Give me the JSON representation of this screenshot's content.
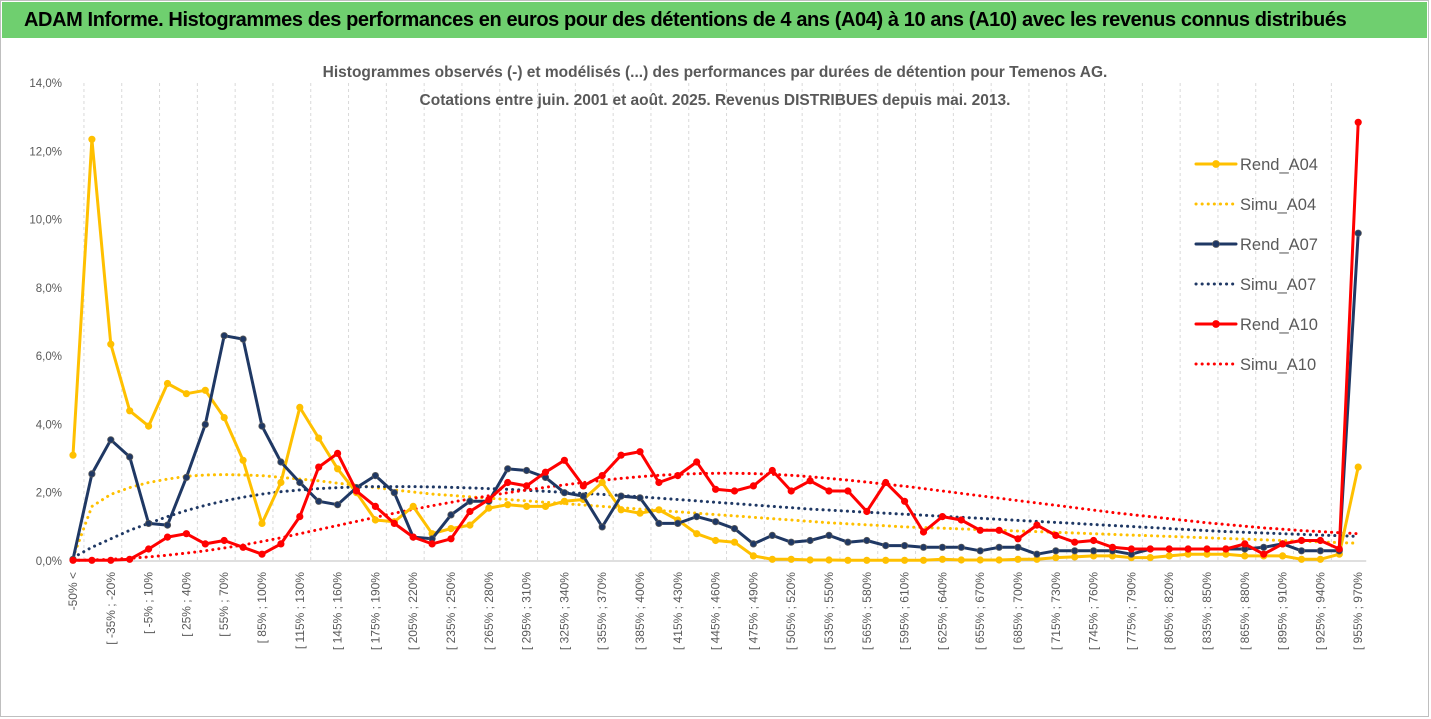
{
  "header": {
    "title": "ADAM Informe. Histogrammes des performances en euros pour des détentions de 4 ans (A04) à 10 ans (A10) avec les revenus connus distribués"
  },
  "colors": {
    "header_bg": "#6fcf6f",
    "A04": "#ffc000",
    "A07": "#1f3864",
    "A10": "#ff0000",
    "grid": "#d9d9d9",
    "axis": "#595959"
  },
  "chart_data": {
    "type": "line",
    "title": "Histogrammes observés (-) et modélisés (...) des performances par durées de détention pour Temenos AG.",
    "subtitle": "Cotations entre juin. 2001 et août. 2025. Revenus DISTRIBUES depuis mai. 2013.",
    "ylim": [
      0,
      14
    ],
    "yticks": [
      "0,0%",
      "2,0%",
      "4,0%",
      "6,0%",
      "8,0%",
      "10,0%",
      "12,0%",
      "14,0%"
    ],
    "tick_labels": [
      "-50% <",
      "[ -35% ; -20%",
      "[ -5% ; 10%",
      "[ 25% ; 40%",
      "[ 55% ; 70%",
      "[ 85% ; 100%",
      "[ 115% ; 130%",
      "[ 145% ; 160%",
      "[ 175% ; 190%",
      "[ 205% ; 220%",
      "[ 235% ; 250%",
      "[ 265% ; 280%",
      "[ 295% ; 310%",
      "[ 325% ; 340%",
      "[ 355% ; 370%",
      "[ 385% ; 400%",
      "[ 415% ; 430%",
      "[ 445% ; 460%",
      "[ 475% ; 490%",
      "[ 505% ; 520%",
      "[ 535% ; 550%",
      "[ 565% ; 580%",
      "[ 595% ; 610%",
      "[ 625% ; 640%",
      "[ 655% ; 670%",
      "[ 685% ; 700%",
      "[ 715% ; 730%",
      "[ 745% ; 760%",
      "[ 775% ; 790%",
      "[ 805% ; 820%",
      "[ 835% ; 850%",
      "[ 865% ; 880%",
      "[ 895% ; 910%",
      "[ 925% ; 940%",
      "[ 955% ; 970%"
    ],
    "n_points": 69,
    "legend_position": "right",
    "series": [
      {
        "name": "Rend_A04",
        "color": "#ffc000",
        "style": "solid",
        "markers": true,
        "values": [
          3.1,
          12.35,
          6.35,
          4.4,
          3.95,
          5.2,
          4.9,
          5.0,
          4.2,
          2.95,
          1.1,
          2.3,
          4.5,
          3.6,
          2.7,
          2.0,
          1.2,
          1.15,
          1.6,
          0.8,
          0.95,
          1.05,
          1.55,
          1.65,
          1.6,
          1.6,
          1.75,
          1.8,
          2.3,
          1.5,
          1.4,
          1.5,
          1.2,
          0.8,
          0.6,
          0.55,
          0.15,
          0.05,
          0.05,
          0.03,
          0.03,
          0.02,
          0.02,
          0.02,
          0.02,
          0.02,
          0.05,
          0.03,
          0.03,
          0.03,
          0.05,
          0.05,
          0.1,
          0.12,
          0.15,
          0.15,
          0.1,
          0.1,
          0.15,
          0.2,
          0.2,
          0.2,
          0.15,
          0.15,
          0.15,
          0.05,
          0.05,
          0.2,
          2.75
        ]
      },
      {
        "name": "Simu_A04",
        "color": "#ffc000",
        "style": "dotted",
        "markers": false,
        "values": [
          0.1,
          1.6,
          1.95,
          2.15,
          2.3,
          2.4,
          2.48,
          2.52,
          2.53,
          2.52,
          2.5,
          2.45,
          2.4,
          2.35,
          2.28,
          2.22,
          2.15,
          2.08,
          2.02,
          1.96,
          1.92,
          1.88,
          1.84,
          1.8,
          1.76,
          1.72,
          1.68,
          1.64,
          1.6,
          1.56,
          1.52,
          1.48,
          1.44,
          1.4,
          1.36,
          1.32,
          1.28,
          1.24,
          1.2,
          1.16,
          1.12,
          1.09,
          1.06,
          1.03,
          1.0,
          0.98,
          0.96,
          0.94,
          0.92,
          0.9,
          0.88,
          0.86,
          0.84,
          0.82,
          0.8,
          0.78,
          0.76,
          0.74,
          0.72,
          0.7,
          0.68,
          0.66,
          0.64,
          0.62,
          0.6,
          0.58,
          0.56,
          0.54,
          0.52
        ]
      },
      {
        "name": "Rend_A07",
        "color": "#1f3864",
        "style": "solid",
        "markers": true,
        "values": [
          0.05,
          2.55,
          3.55,
          3.05,
          1.1,
          1.05,
          2.45,
          4.0,
          6.6,
          6.5,
          3.95,
          2.9,
          2.3,
          1.75,
          1.65,
          2.15,
          2.5,
          2.0,
          0.7,
          0.65,
          1.35,
          1.75,
          1.75,
          2.7,
          2.65,
          2.45,
          2.0,
          1.9,
          1.0,
          1.9,
          1.85,
          1.1,
          1.1,
          1.3,
          1.15,
          0.95,
          0.5,
          0.75,
          0.55,
          0.6,
          0.75,
          0.55,
          0.6,
          0.45,
          0.45,
          0.4,
          0.4,
          0.4,
          0.3,
          0.4,
          0.4,
          0.2,
          0.3,
          0.3,
          0.3,
          0.3,
          0.2,
          0.35,
          0.35,
          0.35,
          0.35,
          0.35,
          0.35,
          0.4,
          0.5,
          0.3,
          0.3,
          0.3,
          9.6
        ]
      },
      {
        "name": "Simu_A07",
        "color": "#1f3864",
        "style": "dotted",
        "markers": false,
        "values": [
          0.1,
          0.4,
          0.65,
          0.9,
          1.1,
          1.3,
          1.48,
          1.63,
          1.76,
          1.87,
          1.96,
          2.03,
          2.08,
          2.12,
          2.15,
          2.17,
          2.18,
          2.18,
          2.18,
          2.17,
          2.16,
          2.14,
          2.12,
          2.1,
          2.07,
          2.04,
          2.01,
          1.98,
          1.95,
          1.92,
          1.88,
          1.84,
          1.8,
          1.76,
          1.72,
          1.68,
          1.64,
          1.6,
          1.56,
          1.52,
          1.49,
          1.46,
          1.43,
          1.4,
          1.37,
          1.34,
          1.31,
          1.28,
          1.25,
          1.22,
          1.19,
          1.16,
          1.13,
          1.1,
          1.07,
          1.04,
          1.01,
          0.98,
          0.95,
          0.92,
          0.89,
          0.86,
          0.84,
          0.82,
          0.8,
          0.78,
          0.76,
          0.74,
          0.72
        ]
      },
      {
        "name": "Rend_A10",
        "color": "#ff0000",
        "style": "solid",
        "markers": true,
        "values": [
          0.02,
          0.02,
          0.02,
          0.05,
          0.35,
          0.7,
          0.8,
          0.5,
          0.6,
          0.4,
          0.2,
          0.5,
          1.3,
          2.75,
          3.15,
          2.05,
          1.6,
          1.1,
          0.7,
          0.5,
          0.65,
          1.45,
          1.8,
          2.3,
          2.2,
          2.6,
          2.95,
          2.2,
          2.5,
          3.1,
          3.2,
          2.3,
          2.5,
          2.9,
          2.1,
          2.05,
          2.2,
          2.65,
          2.05,
          2.35,
          2.05,
          2.05,
          1.45,
          2.3,
          1.75,
          0.85,
          1.3,
          1.2,
          0.9,
          0.9,
          0.65,
          1.05,
          0.75,
          0.55,
          0.6,
          0.4,
          0.35,
          0.35,
          0.35,
          0.35,
          0.35,
          0.35,
          0.5,
          0.2,
          0.5,
          0.6,
          0.6,
          0.35,
          12.85
        ]
      },
      {
        "name": "Simu_A10",
        "color": "#ff0000",
        "style": "dotted",
        "markers": false,
        "values": [
          0.02,
          0.03,
          0.05,
          0.08,
          0.12,
          0.17,
          0.23,
          0.3,
          0.38,
          0.47,
          0.57,
          0.68,
          0.8,
          0.92,
          1.04,
          1.16,
          1.28,
          1.4,
          1.51,
          1.62,
          1.72,
          1.82,
          1.91,
          2.0,
          2.08,
          2.16,
          2.23,
          2.3,
          2.36,
          2.42,
          2.47,
          2.51,
          2.54,
          2.56,
          2.57,
          2.57,
          2.56,
          2.54,
          2.51,
          2.47,
          2.42,
          2.37,
          2.31,
          2.25,
          2.19,
          2.12,
          2.05,
          1.98,
          1.91,
          1.84,
          1.77,
          1.7,
          1.63,
          1.56,
          1.49,
          1.42,
          1.36,
          1.3,
          1.24,
          1.18,
          1.12,
          1.07,
          1.02,
          0.97,
          0.93,
          0.89,
          0.86,
          0.83,
          0.8
        ]
      }
    ]
  }
}
